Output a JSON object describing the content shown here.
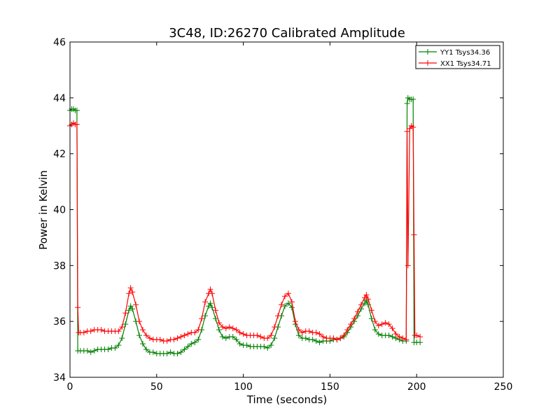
{
  "chart_data": {
    "type": "line",
    "title": "3C48, ID:26270 Calibrated Amplitude",
    "xlabel": "Time (seconds)",
    "ylabel": "Power in Kelvin",
    "xlim": [
      0,
      250
    ],
    "ylim": [
      34,
      46
    ],
    "xticks": [
      0,
      50,
      100,
      150,
      200,
      250
    ],
    "yticks": [
      34,
      36,
      38,
      40,
      42,
      44,
      46
    ],
    "grid": false,
    "legend_position": "top-right",
    "series": [
      {
        "name": "YY1 Tsys34.36",
        "color": "#008000",
        "marker": "+",
        "points": [
          [
            0,
            43.55
          ],
          [
            1,
            43.6
          ],
          [
            2,
            43.6
          ],
          [
            3,
            43.55
          ],
          [
            4,
            43.55
          ],
          [
            4.5,
            34.95
          ],
          [
            6,
            34.95
          ],
          [
            8,
            34.95
          ],
          [
            10,
            34.95
          ],
          [
            12,
            34.9
          ],
          [
            14,
            34.95
          ],
          [
            16,
            35.0
          ],
          [
            18,
            35.0
          ],
          [
            20,
            35.0
          ],
          [
            22,
            35.0
          ],
          [
            24,
            35.05
          ],
          [
            26,
            35.05
          ],
          [
            28,
            35.15
          ],
          [
            30,
            35.4
          ],
          [
            32,
            35.9
          ],
          [
            34,
            36.4
          ],
          [
            35,
            36.55
          ],
          [
            36,
            36.45
          ],
          [
            38,
            36.0
          ],
          [
            40,
            35.5
          ],
          [
            42,
            35.2
          ],
          [
            44,
            35.0
          ],
          [
            46,
            34.9
          ],
          [
            48,
            34.9
          ],
          [
            50,
            34.85
          ],
          [
            52,
            34.85
          ],
          [
            54,
            34.85
          ],
          [
            56,
            34.85
          ],
          [
            58,
            34.9
          ],
          [
            60,
            34.85
          ],
          [
            62,
            34.85
          ],
          [
            64,
            34.9
          ],
          [
            66,
            35.0
          ],
          [
            68,
            35.1
          ],
          [
            70,
            35.2
          ],
          [
            72,
            35.25
          ],
          [
            74,
            35.35
          ],
          [
            76,
            35.7
          ],
          [
            78,
            36.2
          ],
          [
            80,
            36.55
          ],
          [
            81,
            36.65
          ],
          [
            82,
            36.5
          ],
          [
            84,
            36.1
          ],
          [
            86,
            35.7
          ],
          [
            88,
            35.45
          ],
          [
            90,
            35.4
          ],
          [
            92,
            35.45
          ],
          [
            94,
            35.45
          ],
          [
            96,
            35.35
          ],
          [
            98,
            35.2
          ],
          [
            100,
            35.15
          ],
          [
            102,
            35.15
          ],
          [
            104,
            35.1
          ],
          [
            106,
            35.1
          ],
          [
            108,
            35.1
          ],
          [
            110,
            35.1
          ],
          [
            112,
            35.1
          ],
          [
            114,
            35.05
          ],
          [
            116,
            35.15
          ],
          [
            118,
            35.4
          ],
          [
            120,
            35.8
          ],
          [
            122,
            36.2
          ],
          [
            124,
            36.55
          ],
          [
            126,
            36.65
          ],
          [
            128,
            36.5
          ],
          [
            130,
            35.9
          ],
          [
            132,
            35.5
          ],
          [
            134,
            35.4
          ],
          [
            136,
            35.4
          ],
          [
            138,
            35.35
          ],
          [
            140,
            35.35
          ],
          [
            142,
            35.3
          ],
          [
            144,
            35.25
          ],
          [
            146,
            35.3
          ],
          [
            148,
            35.3
          ],
          [
            150,
            35.3
          ],
          [
            152,
            35.35
          ],
          [
            154,
            35.35
          ],
          [
            156,
            35.4
          ],
          [
            158,
            35.45
          ],
          [
            160,
            35.6
          ],
          [
            162,
            35.8
          ],
          [
            164,
            36.0
          ],
          [
            166,
            36.2
          ],
          [
            168,
            36.45
          ],
          [
            170,
            36.65
          ],
          [
            171,
            36.75
          ],
          [
            172,
            36.6
          ],
          [
            174,
            36.1
          ],
          [
            176,
            35.7
          ],
          [
            178,
            35.55
          ],
          [
            180,
            35.5
          ],
          [
            182,
            35.5
          ],
          [
            184,
            35.5
          ],
          [
            186,
            35.45
          ],
          [
            188,
            35.4
          ],
          [
            190,
            35.35
          ],
          [
            192,
            35.3
          ],
          [
            194,
            35.3
          ],
          [
            194.5,
            43.8
          ],
          [
            195,
            44.0
          ],
          [
            196,
            43.95
          ],
          [
            197,
            43.95
          ],
          [
            198,
            43.95
          ],
          [
            198.5,
            35.25
          ],
          [
            200,
            35.25
          ],
          [
            202,
            35.25
          ]
        ]
      },
      {
        "name": "XX1 Tsys34.71",
        "color": "#ff0000",
        "marker": "+",
        "points": [
          [
            0,
            43.0
          ],
          [
            1,
            43.05
          ],
          [
            2,
            43.1
          ],
          [
            3,
            43.05
          ],
          [
            4,
            43.05
          ],
          [
            4.5,
            36.5
          ],
          [
            5,
            35.6
          ],
          [
            6,
            35.6
          ],
          [
            8,
            35.6
          ],
          [
            10,
            35.65
          ],
          [
            12,
            35.65
          ],
          [
            14,
            35.7
          ],
          [
            16,
            35.7
          ],
          [
            18,
            35.7
          ],
          [
            20,
            35.65
          ],
          [
            22,
            35.65
          ],
          [
            24,
            35.65
          ],
          [
            26,
            35.65
          ],
          [
            28,
            35.65
          ],
          [
            30,
            35.8
          ],
          [
            32,
            36.3
          ],
          [
            34,
            37.0
          ],
          [
            35,
            37.2
          ],
          [
            36,
            37.05
          ],
          [
            38,
            36.6
          ],
          [
            40,
            36.0
          ],
          [
            42,
            35.7
          ],
          [
            44,
            35.5
          ],
          [
            46,
            35.4
          ],
          [
            48,
            35.35
          ],
          [
            50,
            35.35
          ],
          [
            52,
            35.35
          ],
          [
            54,
            35.3
          ],
          [
            56,
            35.3
          ],
          [
            58,
            35.35
          ],
          [
            60,
            35.35
          ],
          [
            62,
            35.4
          ],
          [
            64,
            35.45
          ],
          [
            66,
            35.5
          ],
          [
            68,
            35.55
          ],
          [
            70,
            35.6
          ],
          [
            72,
            35.6
          ],
          [
            74,
            35.7
          ],
          [
            76,
            36.1
          ],
          [
            78,
            36.7
          ],
          [
            80,
            37.0
          ],
          [
            81,
            37.15
          ],
          [
            82,
            37.0
          ],
          [
            84,
            36.4
          ],
          [
            86,
            35.95
          ],
          [
            88,
            35.8
          ],
          [
            90,
            35.75
          ],
          [
            92,
            35.8
          ],
          [
            94,
            35.75
          ],
          [
            96,
            35.7
          ],
          [
            98,
            35.6
          ],
          [
            100,
            35.55
          ],
          [
            102,
            35.5
          ],
          [
            104,
            35.5
          ],
          [
            106,
            35.5
          ],
          [
            108,
            35.5
          ],
          [
            110,
            35.45
          ],
          [
            112,
            35.4
          ],
          [
            114,
            35.4
          ],
          [
            116,
            35.5
          ],
          [
            118,
            35.8
          ],
          [
            120,
            36.2
          ],
          [
            122,
            36.6
          ],
          [
            124,
            36.9
          ],
          [
            126,
            37.0
          ],
          [
            128,
            36.7
          ],
          [
            130,
            36.0
          ],
          [
            132,
            35.7
          ],
          [
            134,
            35.6
          ],
          [
            136,
            35.65
          ],
          [
            138,
            35.65
          ],
          [
            140,
            35.6
          ],
          [
            142,
            35.6
          ],
          [
            144,
            35.55
          ],
          [
            146,
            35.45
          ],
          [
            148,
            35.4
          ],
          [
            150,
            35.4
          ],
          [
            152,
            35.4
          ],
          [
            154,
            35.35
          ],
          [
            156,
            35.4
          ],
          [
            158,
            35.5
          ],
          [
            160,
            35.7
          ],
          [
            162,
            35.9
          ],
          [
            164,
            36.1
          ],
          [
            166,
            36.35
          ],
          [
            168,
            36.6
          ],
          [
            170,
            36.85
          ],
          [
            171,
            36.95
          ],
          [
            172,
            36.8
          ],
          [
            174,
            36.4
          ],
          [
            176,
            36.0
          ],
          [
            178,
            35.85
          ],
          [
            180,
            35.9
          ],
          [
            182,
            35.95
          ],
          [
            184,
            35.9
          ],
          [
            186,
            35.75
          ],
          [
            188,
            35.55
          ],
          [
            190,
            35.45
          ],
          [
            192,
            35.4
          ],
          [
            194,
            35.35
          ],
          [
            194.5,
            42.8
          ],
          [
            195,
            38.0
          ],
          [
            196,
            42.9
          ],
          [
            197,
            43.0
          ],
          [
            198,
            42.95
          ],
          [
            198.5,
            39.1
          ],
          [
            199,
            35.5
          ],
          [
            200,
            35.5
          ],
          [
            202,
            35.45
          ]
        ]
      }
    ]
  }
}
